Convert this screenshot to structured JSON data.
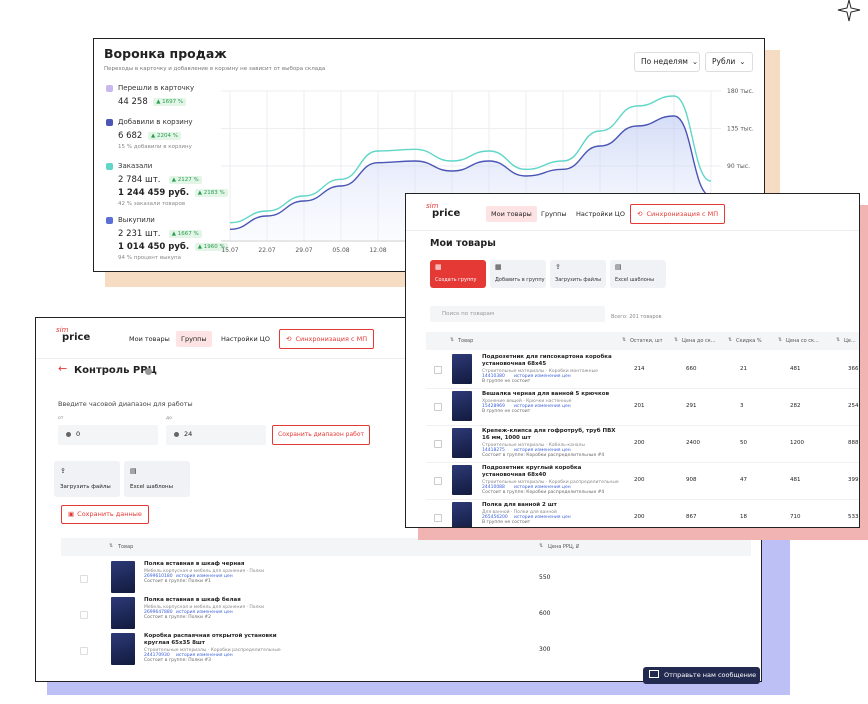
{
  "funnel": {
    "title": "Воронка продаж",
    "subtitle": "Переходы в карточку и добавление в корзину не зависит от выбора склада",
    "selects": [
      "По неделям",
      "Рубли"
    ],
    "metrics": [
      {
        "label": "Перешли в карточку",
        "color": "#c9b8ee",
        "rows": [
          {
            "value": "44 258",
            "change": "1697 %"
          }
        ]
      },
      {
        "label": "Добавили в корзину",
        "color": "#4a55b5",
        "rows": [
          {
            "value": "6 682",
            "change": "2204 %"
          }
        ],
        "note": "15 % добавили в корзину"
      },
      {
        "label": "Заказали",
        "color": "#5fd6c8",
        "rows": [
          {
            "value": "2 784 шт.",
            "change": "2127 %"
          },
          {
            "value": "1 244 459 руб.",
            "change": "2183 %"
          }
        ],
        "note": "42 % заказали товаров"
      },
      {
        "label": "Выкупили",
        "color": "#5b6fd6",
        "rows": [
          {
            "value": "2 231 шт.",
            "change": "1667 %"
          },
          {
            "value": "1 014 450 руб.",
            "change": "1960 %"
          }
        ],
        "note": "94 % процент выкупа"
      }
    ],
    "chart": {
      "type": "line",
      "categories": [
        "15.07",
        "22.07",
        "29.07",
        "05.08",
        "12.08",
        null,
        null,
        null,
        null,
        null,
        null,
        null,
        null,
        null
      ],
      "series": [
        {
          "name": "Перешли в карточку",
          "color": "#5fd6c8",
          "values": [
            22000,
            36000,
            54000,
            74000,
            108000,
            110000,
            96000,
            108000,
            86000,
            96000,
            132000,
            162000,
            174000,
            72000
          ]
        },
        {
          "name": "Добавили в корзину",
          "color": "#4a55b5",
          "values": [
            14000,
            30000,
            48000,
            66000,
            94000,
            96000,
            84000,
            96000,
            78000,
            86000,
            114000,
            138000,
            150000,
            54000
          ]
        }
      ],
      "ylim": [
        0,
        180000
      ],
      "yticks": [
        {
          "value": 180000,
          "label": "180 тыс."
        },
        {
          "value": 135000,
          "label": "135 тыс."
        },
        {
          "value": 90000,
          "label": "90 тыс."
        }
      ],
      "grid": true
    }
  },
  "products": {
    "brand": {
      "top": "sim",
      "bottom": "price"
    },
    "nav": [
      "Мои товары",
      "Группы",
      "Настройки ЦО"
    ],
    "sync": "Синхронизация с МП",
    "heading": "Мои товары",
    "actions": [
      "Создать группу",
      "Добавить в группу",
      "Загрузить файлы",
      "Excel шаблоны"
    ],
    "search": "Поиск по товарам",
    "total": "Всего: 201 товаров",
    "columns": [
      "Товар",
      "Остатки, шт",
      "Цена до ск...",
      "Скидка %",
      "Цена со ск...",
      "Це..."
    ],
    "rows": [
      {
        "name": "Подрозетник для гипсокартона коробка установочная 68х45",
        "category": "Строительные материалы · Коробки монтажные",
        "sku": "14410380",
        "link": "история изменения цен",
        "status": "В группе не состоит",
        "cells": [
          "214",
          "660",
          "21",
          "481",
          "366"
        ]
      },
      {
        "name": "Вешалка черная для ванной 5 крючков",
        "category": "Хранение вещей · Крючки настенные",
        "sku": "15428969",
        "link": "история изменения цен",
        "status": "В группе не состоит",
        "cells": [
          "201",
          "291",
          "3",
          "282",
          "254"
        ]
      },
      {
        "name": "Крепеж-клипса для гофротруб, труб ПВХ 16 мм, 1000 шт",
        "category": "Строительные материалы · Кабель-каналы",
        "sku": "14418275",
        "link": "история изменения цен",
        "status": "Состоит в группе: Коробки распределительные #4",
        "cells": [
          "200",
          "2400",
          "50",
          "1200",
          "888"
        ]
      },
      {
        "name": "Подрозетник круглый коробка установочная 68х40",
        "category": "Строительные материалы · Коробки распределительные",
        "sku": "24410088",
        "link": "история изменения цен",
        "status": "Состоит в группе: Коробки распределительные #4",
        "cells": [
          "200",
          "908",
          "47",
          "481",
          "399"
        ]
      },
      {
        "name": "Полка для ванной 2 шт",
        "category": "Для ванной · Полки для ванной",
        "sku": "265456200",
        "link": "история изменения цен",
        "status": "В группе не состоит",
        "cells": [
          "200",
          "867",
          "18",
          "710",
          "533"
        ]
      }
    ]
  },
  "rrc": {
    "brand": {
      "top": "sim",
      "bottom": "price"
    },
    "nav": [
      "Мои товары",
      "Группы",
      "Настройки ЦО"
    ],
    "sync": "Синхронизация с МП",
    "heading": "Контроль РРЦ",
    "range_title": "Введите часовой диапазон для работы",
    "from": {
      "label": "от",
      "value": "0"
    },
    "to": {
      "label": "до",
      "value": "24"
    },
    "save_range": "Сохранить диапазон работ",
    "actions": [
      "Загрузить файлы",
      "Excel шаблоны"
    ],
    "save": "Сохранить данные",
    "columns": [
      "Товар",
      "Цена РРЦ, ₽"
    ],
    "rows": [
      {
        "name": "Полка вставная в шкаф черная",
        "category": "Мебель корпусная и мебель для хранения · Полки",
        "sku": "2699610180",
        "link": "история изменения цен",
        "status": "Состоит в группе: Полки #1",
        "price": "550"
      },
      {
        "name": "Полка вставная в шкаф белая",
        "category": "Мебель корпусная и мебель для хранения · Полки",
        "sku": "2699647880",
        "link": "история изменения цен",
        "status": "Состоит в группе: Полки #2",
        "price": "600"
      },
      {
        "name": "Коробка распаячная открытой установки круглая 65х35 8шт",
        "category": "Строительные материалы · Коробки распределительные",
        "sku": "244170930",
        "link": "история изменения цен",
        "status": "Состоит в группе: Полки #3",
        "price": "300"
      }
    ]
  },
  "chat": "Отправьте нам сообщение"
}
